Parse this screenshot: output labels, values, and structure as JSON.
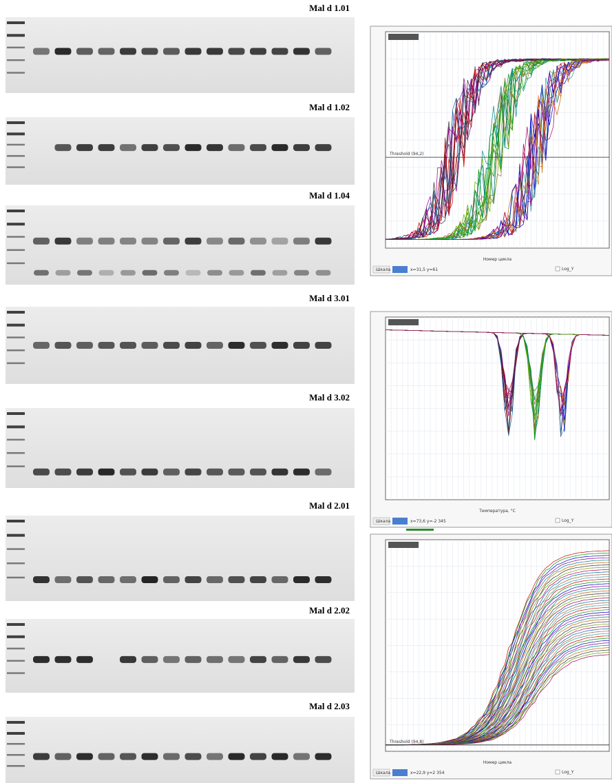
{
  "gels": [
    {
      "label": "Mal d 1.01"
    },
    {
      "label": "Mal d 1.02"
    },
    {
      "label": "Mal d 1.04"
    },
    {
      "label": "Mal d 3.01"
    },
    {
      "label": "Mal d 3.02"
    },
    {
      "label": "Mal d 2.01"
    },
    {
      "label": "Mal d 2.02"
    },
    {
      "label": "Mal d 2.03"
    }
  ],
  "panels": [
    {
      "threshold": "Threshold (94,2)",
      "x_label": "Номер цикла",
      "status": "x=31,5 y=61",
      "scale": "Шкала",
      "option": "Log_Y"
    },
    {
      "threshold": null,
      "x_label": "Температура, °C",
      "status": "x=73,6 y=-2 345",
      "scale": "Шкала",
      "option": "Log_Y"
    },
    {
      "threshold": "Threshold (94,8)",
      "x_label": "Номер цикла",
      "status": "x=22,9 y=2 354",
      "scale": "Шкала",
      "option": "Log_Y"
    }
  ]
}
